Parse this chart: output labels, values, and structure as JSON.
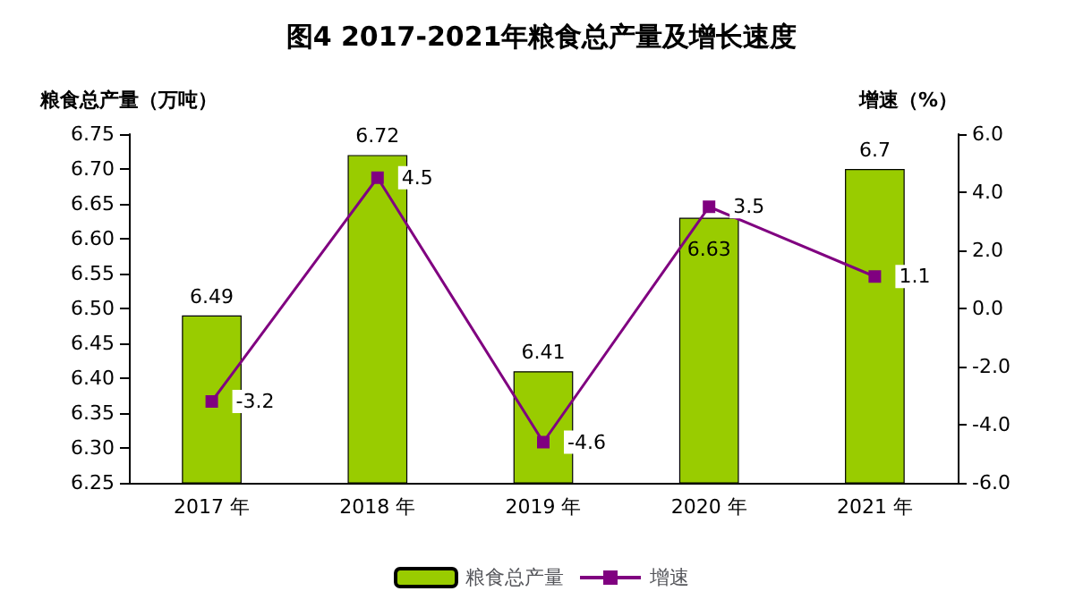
{
  "chart_data": {
    "type": "bar",
    "title": "图4 2017-2021年粮食总产量及增长速度",
    "ylabel": "粮食总产量（万吨）",
    "y2label": "增速（%）",
    "categories": [
      "2017 年",
      "2018 年",
      "2019 年",
      "2020 年",
      "2021 年"
    ],
    "series": [
      {
        "name": "粮食总产量",
        "color": "#99cc00",
        "values": [
          6.49,
          6.72,
          6.41,
          6.63,
          6.7
        ]
      },
      {
        "name": "增速",
        "type": "line",
        "axis": "y2",
        "color": "#800080",
        "values": [
          -3.2,
          4.5,
          -4.6,
          3.5,
          1.1
        ]
      }
    ],
    "ylim": [
      6.25,
      6.75
    ],
    "yticks": [
      6.25,
      {
        "value": 6.3,
        "label": "6.30"
      },
      6.35,
      {
        "value": 6.4,
        "label": "6.40"
      },
      6.45,
      {
        "value": 6.5,
        "label": "6.50"
      },
      6.55,
      {
        "value": 6.6,
        "label": "6.60"
      },
      6.65,
      {
        "value": 6.7,
        "label": "6.70"
      },
      6.75
    ],
    "y2lim": [
      -6,
      6
    ],
    "y2ticks": [
      {
        "value": -6,
        "label": "-6.0"
      },
      {
        "value": -4,
        "label": "-4.0"
      },
      {
        "value": -2,
        "label": "-2.0"
      },
      {
        "value": 0,
        "label": "0.0"
      },
      {
        "value": 2,
        "label": "2.0"
      },
      {
        "value": 4,
        "label": "4.0"
      },
      {
        "value": 6,
        "label": "6.0"
      }
    ],
    "data_labels": true,
    "legend": "bottom",
    "grid": false,
    "marker": "square",
    "line_style": "solid"
  }
}
